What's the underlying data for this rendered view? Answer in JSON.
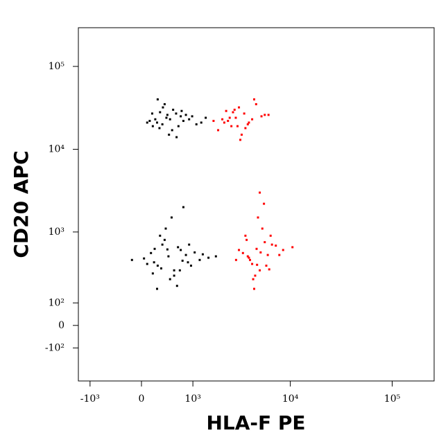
{
  "chart_data": {
    "type": "scatter",
    "xlabel": "HLA-F PE",
    "ylabel": "CD20 APC",
    "xscale": "biexponential",
    "yscale": "biexponential",
    "xlim": [
      -1360,
      258000
    ],
    "ylim": [
      -335,
      293000
    ],
    "xticks": [
      {
        "value": -1000,
        "label": "-10³"
      },
      0,
      {
        "value": 1000,
        "label": "10³"
      },
      {
        "value": 10000,
        "label": "10⁴"
      },
      {
        "value": 100000,
        "label": "10⁵"
      }
    ],
    "yticks": [
      {
        "value": -100,
        "label": "-10²"
      },
      0,
      {
        "value": 100,
        "label": "10²"
      },
      {
        "value": 1000,
        "label": "10³"
      },
      {
        "value": 10000,
        "label": "10⁴"
      },
      {
        "value": 100000,
        "label": "10⁵"
      }
    ],
    "series": [
      {
        "color": "#000000",
        "x": [
          412,
          250,
          600,
          180,
          900,
          350,
          520,
          700,
          130,
          1100,
          300,
          460,
          820,
          220,
          380,
          650,
          1400,
          90,
          540,
          290,
          760,
          430,
          170,
          980,
          610,
          340,
          480,
          260,
          720,
          1250
        ],
        "y": [
          24000,
          21000,
          27000,
          19000,
          23000,
          32000,
          17000,
          25000,
          22000,
          20000,
          28000,
          15000,
          26000,
          23000,
          35000,
          19000,
          24000,
          21000,
          30000,
          18000,
          22000,
          26000,
          27000,
          25000,
          14000,
          20000,
          23000,
          40000,
          29000,
          21000
        ]
      },
      {
        "color": "#ff0000",
        "x": [
          2880,
          2200,
          3500,
          2600,
          4200,
          3100,
          1900,
          5200,
          2400,
          3800,
          2700,
          3300,
          6100,
          2100,
          4600,
          3000,
          2500,
          3900,
          2800,
          3600,
          1700,
          5600,
          3200,
          4400,
          2300
        ],
        "y": [
          24000,
          21000,
          27000,
          19000,
          23000,
          32000,
          17000,
          25000,
          22000,
          20000,
          28000,
          15000,
          26000,
          23000,
          35000,
          19000,
          24000,
          21000,
          30000,
          18000,
          22000,
          26000,
          13000,
          40000,
          29000
        ]
      },
      {
        "color": "#000000",
        "x": [
          450,
          200,
          700,
          320,
          900,
          150,
          560,
          1200,
          380,
          260,
          820,
          640,
          90,
          1500,
          480,
          300,
          1050,
          560,
          210,
          740,
          400,
          950,
          40,
          620,
          340,
          1300,
          510,
          180,
          870,
          430,
          -150,
          1800,
          680,
          250,
          760
        ],
        "y": [
          500,
          420,
          600,
          350,
          700,
          550,
          280,
          450,
          800,
          380,
          520,
          650,
          400,
          480,
          250,
          900,
          560,
          330,
          620,
          440,
          1100,
          380,
          470,
          200,
          700,
          530,
          1500,
          300,
          420,
          610,
          450,
          500,
          330,
          180,
          2000
        ]
      },
      {
        "color": "#ff0000",
        "x": [
          4650,
          3800,
          5600,
          4200,
          6400,
          3400,
          5000,
          7200,
          4000,
          5300,
          3100,
          6000,
          4500,
          8500,
          3700,
          5800,
          4800,
          2900,
          6600,
          4300,
          5100,
          10500,
          3900,
          5500,
          4700,
          7800,
          3600,
          6200,
          4400,
          5000
        ],
        "y": [
          620,
          500,
          750,
          400,
          900,
          550,
          330,
          680,
          450,
          1100,
          600,
          520,
          280,
          600,
          800,
          380,
          1500,
          450,
          700,
          250,
          560,
          650,
          480,
          2200,
          390,
          520,
          900,
          340,
          180,
          3000
        ]
      }
    ]
  }
}
